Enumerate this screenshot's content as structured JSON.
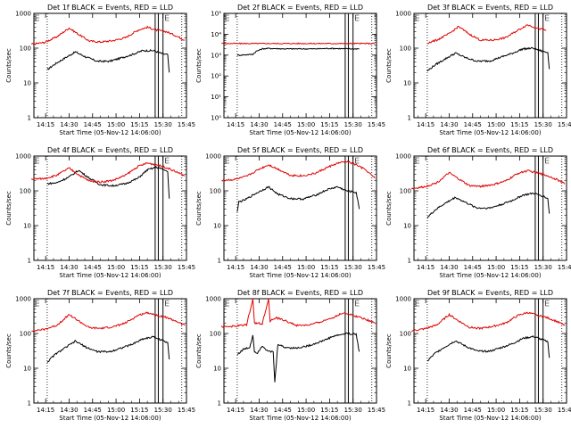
{
  "colors": {
    "events": "#000000",
    "lld": "#e00000",
    "background": "#ffffff"
  },
  "chart_data": [
    {
      "type": "line",
      "detector": "1f",
      "title": "Det 1f BLACK = Events, RED = LLD",
      "xlabel": "Start Time (05-Nov-12 14:06:00)",
      "ylabel": "Counts/sec",
      "xticks": [
        "14:15",
        "14:30",
        "14:45",
        "15:00",
        "15:15",
        "15:30",
        "15:45"
      ],
      "yscale": "log",
      "ylim": [
        1,
        1000
      ],
      "yticks": [
        "1",
        "10",
        "100",
        "1000"
      ],
      "series": [
        {
          "name": "Events",
          "color": "#000000",
          "x": [
            10,
            15,
            20,
            28,
            35,
            42,
            50,
            57,
            64,
            71,
            78,
            84,
            87,
            88
          ],
          "y": [
            24,
            35,
            48,
            78,
            55,
            42,
            42,
            52,
            65,
            85,
            85,
            68,
            65,
            20
          ]
        },
        {
          "name": "LLD",
          "color": "#e00000",
          "x": [
            0,
            8,
            16,
            24,
            30,
            37,
            44,
            52,
            60,
            68,
            74,
            80,
            86,
            92,
            98
          ],
          "y": [
            130,
            145,
            210,
            380,
            250,
            160,
            150,
            165,
            200,
            330,
            400,
            330,
            300,
            230,
            170
          ]
        }
      ]
    },
    {
      "type": "line",
      "detector": "2f",
      "title": "Det 2f BLACK = Events, RED = LLD",
      "xlabel": "Start Time (05-Nov-12 14:06:00)",
      "ylabel": "Counts/sec",
      "xticks": [
        "14:15",
        "14:30",
        "14:45",
        "15:00",
        "15:15",
        "15:30",
        "15:45"
      ],
      "yscale": "log",
      "ylim": [
        1,
        100000
      ],
      "yticks": [
        "10⁰",
        "10¹",
        "10²",
        "10³",
        "10⁴",
        "10⁵"
      ],
      "series": [
        {
          "name": "Events",
          "color": "#000000",
          "x": [
            10,
            12,
            20,
            22,
            26,
            30,
            40,
            50,
            60,
            70,
            80,
            88
          ],
          "y": [
            1000,
            1000,
            1100,
            1500,
            2000,
            2100,
            2000,
            2000,
            2000,
            2100,
            2000,
            2000
          ]
        },
        {
          "name": "LLD",
          "color": "#e00000",
          "x": [
            0,
            20,
            40,
            60,
            80,
            98
          ],
          "y": [
            3600,
            3600,
            3600,
            3600,
            3600,
            3600
          ]
        }
      ]
    },
    {
      "type": "line",
      "detector": "3f",
      "title": "Det 3f BLACK = Events, RED = LLD",
      "xlabel": "Start Time (05-Nov-12 14:06:00)",
      "ylabel": "Counts/sec",
      "xticks": [
        "14:15",
        "14:30",
        "14:45",
        "15:00",
        "15:15",
        "15:30",
        "15:45"
      ],
      "yscale": "log",
      "ylim": [
        1,
        1000
      ],
      "yticks": [
        "1",
        "10",
        "100",
        "1000"
      ],
      "series": [
        {
          "name": "Events",
          "color": "#000000",
          "x": [
            10,
            15,
            20,
            28,
            35,
            42,
            50,
            57,
            64,
            71,
            78,
            84,
            87,
            88
          ],
          "y": [
            22,
            33,
            45,
            72,
            52,
            42,
            43,
            55,
            70,
            95,
            100,
            80,
            75,
            25
          ]
        },
        {
          "name": "LLD",
          "color": "#e00000",
          "x": [
            10,
            16,
            24,
            30,
            37,
            44,
            52,
            60,
            68,
            74,
            80,
            86
          ],
          "y": [
            140,
            170,
            260,
            420,
            250,
            170,
            170,
            200,
            330,
            470,
            380,
            320
          ]
        }
      ]
    },
    {
      "type": "line",
      "detector": "4f",
      "title": "Det 4f BLACK = Events, RED = LLD",
      "xlabel": "Start Time (05-Nov-12 14:06:00)",
      "ylabel": "Counts/sec",
      "xticks": [
        "14:15",
        "14:30",
        "14:45",
        "15:00",
        "15:15",
        "15:30",
        "15:45"
      ],
      "yscale": "log",
      "ylim": [
        1,
        1000
      ],
      "yticks": [
        "1",
        "10",
        "100",
        "1000"
      ],
      "series": [
        {
          "name": "Events",
          "color": "#000000",
          "x": [
            10,
            16,
            24,
            30,
            37,
            44,
            52,
            60,
            68,
            74,
            80,
            86,
            87,
            88
          ],
          "y": [
            160,
            170,
            250,
            390,
            230,
            150,
            140,
            160,
            230,
            400,
            480,
            380,
            350,
            60
          ]
        },
        {
          "name": "LLD",
          "color": "#e00000",
          "x": [
            0,
            8,
            16,
            24,
            30,
            37,
            44,
            52,
            60,
            68,
            74,
            80,
            86,
            92,
            98
          ],
          "y": [
            220,
            225,
            280,
            450,
            290,
            190,
            180,
            200,
            280,
            500,
            630,
            560,
            470,
            360,
            270
          ]
        }
      ]
    },
    {
      "type": "line",
      "detector": "5f",
      "title": "Det 5f BLACK = Events, RED = LLD",
      "xlabel": "Start Time (05-Nov-12 14:06:00)",
      "ylabel": "Counts/sec",
      "xticks": [
        "14:15",
        "14:30",
        "14:45",
        "15:00",
        "15:15",
        "15:30",
        "15:45"
      ],
      "yscale": "log",
      "ylim": [
        1,
        1000
      ],
      "yticks": [
        "1",
        "10",
        "100",
        "1000"
      ],
      "series": [
        {
          "name": "Events",
          "color": "#000000",
          "x": [
            10,
            11,
            15,
            22,
            30,
            36,
            44,
            52,
            60,
            68,
            74,
            80,
            86,
            88
          ],
          "y": [
            25,
            48,
            55,
            85,
            130,
            80,
            60,
            58,
            75,
            110,
            130,
            100,
            90,
            30
          ]
        },
        {
          "name": "LLD",
          "color": "#e00000",
          "x": [
            0,
            8,
            16,
            24,
            30,
            37,
            44,
            52,
            60,
            68,
            74,
            80,
            86,
            92,
            98
          ],
          "y": [
            200,
            210,
            260,
            420,
            560,
            400,
            280,
            270,
            320,
            480,
            620,
            700,
            560,
            400,
            230
          ]
        }
      ]
    },
    {
      "type": "line",
      "detector": "6f",
      "title": "Det 6f BLACK = Events, RED = LLD",
      "xlabel": "Start Time (05-Nov-12 14:06:00)",
      "ylabel": "Counts/sec",
      "xticks": [
        "14:15",
        "14:30",
        "14:45",
        "15:00",
        "15:15",
        "15:30",
        "15:45"
      ],
      "yscale": "log",
      "ylim": [
        1,
        1000
      ],
      "yticks": [
        "1",
        "10",
        "100",
        "1000"
      ],
      "series": [
        {
          "name": "Events",
          "color": "#000000",
          "x": [
            10,
            15,
            20,
            28,
            35,
            42,
            50,
            57,
            64,
            71,
            78,
            84,
            87,
            88
          ],
          "y": [
            17,
            28,
            40,
            65,
            45,
            32,
            32,
            40,
            52,
            75,
            85,
            70,
            60,
            22
          ]
        },
        {
          "name": "LLD",
          "color": "#e00000",
          "x": [
            0,
            8,
            16,
            24,
            30,
            37,
            44,
            52,
            60,
            68,
            74,
            80,
            86,
            92,
            98
          ],
          "y": [
            115,
            130,
            170,
            330,
            220,
            140,
            135,
            150,
            190,
            320,
            380,
            330,
            280,
            220,
            160
          ]
        }
      ]
    },
    {
      "type": "line",
      "detector": "7f",
      "title": "Det 7f BLACK = Events, RED = LLD",
      "xlabel": "Start Time (05-Nov-12 14:06:00)",
      "ylabel": "Counts/sec",
      "xticks": [
        "14:15",
        "14:30",
        "14:45",
        "15:00",
        "15:15",
        "15:30",
        "15:45"
      ],
      "yscale": "log",
      "ylim": [
        1,
        1000
      ],
      "yticks": [
        "1",
        "10",
        "100",
        "1000"
      ],
      "series": [
        {
          "name": "Events",
          "color": "#000000",
          "x": [
            10,
            15,
            20,
            28,
            35,
            42,
            50,
            57,
            64,
            71,
            78,
            84,
            87,
            88
          ],
          "y": [
            15,
            25,
            35,
            60,
            40,
            30,
            30,
            38,
            48,
            70,
            80,
            62,
            55,
            18
          ]
        },
        {
          "name": "LLD",
          "color": "#e00000",
          "x": [
            0,
            8,
            16,
            24,
            30,
            37,
            44,
            52,
            60,
            68,
            74,
            80,
            86,
            92,
            98
          ],
          "y": [
            120,
            130,
            170,
            350,
            230,
            145,
            140,
            155,
            200,
            330,
            400,
            340,
            290,
            230,
            170
          ]
        }
      ]
    },
    {
      "type": "line",
      "detector": "8f",
      "title": "Det 8f BLACK = Events, RED = LLD",
      "xlabel": "Start Time (05-Nov-12 14:06:00)",
      "ylabel": "Counts/sec",
      "xticks": [
        "14:15",
        "14:30",
        "14:45",
        "15:00",
        "15:15",
        "15:30",
        "15:45"
      ],
      "yscale": "log",
      "ylim": [
        1,
        1000
      ],
      "yticks": [
        "1",
        "10",
        "100",
        "1000"
      ],
      "series": [
        {
          "name": "Events",
          "color": "#000000",
          "x": [
            10,
            14,
            18,
            20,
            21,
            23,
            26,
            30,
            33,
            34,
            36,
            40,
            48,
            56,
            64,
            72,
            80,
            86,
            88
          ],
          "y": [
            25,
            35,
            40,
            90,
            30,
            28,
            45,
            30,
            30,
            4,
            50,
            40,
            38,
            45,
            60,
            85,
            100,
            95,
            30
          ]
        },
        {
          "name": "LLD",
          "color": "#e00000",
          "x": [
            0,
            8,
            16,
            20,
            21,
            26,
            30,
            31,
            35,
            40,
            48,
            56,
            64,
            72,
            78,
            84,
            90,
            98
          ],
          "y": [
            160,
            160,
            180,
            1000,
            200,
            190,
            1000,
            230,
            280,
            240,
            170,
            175,
            220,
            300,
            400,
            330,
            280,
            200
          ]
        }
      ]
    },
    {
      "type": "line",
      "detector": "9f",
      "title": "Det 9f BLACK = Events, RED = LLD",
      "xlabel": "Start Time (05-Nov-12 14:06:00)",
      "ylabel": "Counts/sec",
      "xticks": [
        "14:15",
        "14:30",
        "14:45",
        "15:00",
        "15:15",
        "15:30",
        "15:45"
      ],
      "yscale": "log",
      "ylim": [
        1,
        1000
      ],
      "yticks": [
        "1",
        "10",
        "100",
        "1000"
      ],
      "series": [
        {
          "name": "Events",
          "color": "#000000",
          "x": [
            10,
            15,
            20,
            28,
            35,
            42,
            50,
            57,
            64,
            71,
            78,
            84,
            87,
            88
          ],
          "y": [
            16,
            27,
            38,
            62,
            42,
            31,
            31,
            39,
            50,
            72,
            82,
            65,
            58,
            20
          ]
        },
        {
          "name": "LLD",
          "color": "#e00000",
          "x": [
            0,
            8,
            16,
            24,
            30,
            37,
            44,
            52,
            60,
            68,
            74,
            80,
            86,
            92,
            98
          ],
          "y": [
            120,
            135,
            175,
            350,
            230,
            150,
            140,
            160,
            200,
            330,
            400,
            340,
            290,
            230,
            170
          ]
        }
      ]
    }
  ]
}
